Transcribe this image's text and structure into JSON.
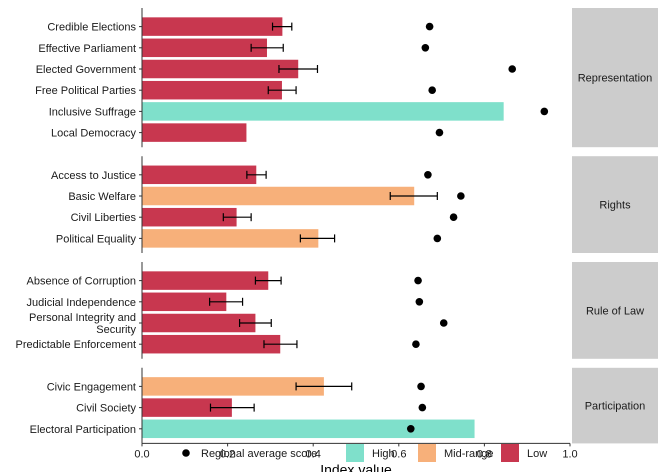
{
  "chart_data": {
    "type": "bar",
    "orientation": "horizontal",
    "xlabel": "Index value",
    "xlim": [
      0,
      1
    ],
    "xticks": [
      "0.0",
      "0.2",
      "0.4",
      "0.6",
      "0.8",
      "1.0"
    ],
    "colors": {
      "High": "#7fe0cb",
      "Mid-range": "#f7b07a",
      "Low": "#c8374f",
      "dot": "#000000",
      "strip": "#cccccc"
    },
    "legend": {
      "position": "bottom",
      "dot_label": "Regional average score",
      "items": [
        "High",
        "Mid-range",
        "Low"
      ]
    },
    "facets": [
      {
        "name": "Representation",
        "rows": [
          {
            "label": "Credible Elections",
            "value": 0.328,
            "lo": 0.305,
            "hi": 0.35,
            "level": "Low",
            "avg": 0.672
          },
          {
            "label": "Effective Parliament",
            "value": 0.292,
            "lo": 0.255,
            "hi": 0.33,
            "level": "Low",
            "avg": 0.662
          },
          {
            "label": "Elected Government",
            "value": 0.365,
            "lo": 0.32,
            "hi": 0.41,
            "level": "Low",
            "avg": 0.865
          },
          {
            "label": "Free Political Parties",
            "value": 0.327,
            "lo": 0.295,
            "hi": 0.36,
            "level": "Low",
            "avg": 0.678
          },
          {
            "label": "Inclusive Suffrage",
            "value": 0.845,
            "lo": null,
            "hi": null,
            "level": "High",
            "avg": 0.94
          },
          {
            "label": "Local Democracy",
            "value": 0.244,
            "lo": null,
            "hi": null,
            "level": "Low",
            "avg": 0.695
          }
        ]
      },
      {
        "name": "Rights",
        "rows": [
          {
            "label": "Access to Justice",
            "value": 0.267,
            "lo": 0.245,
            "hi": 0.29,
            "level": "Low",
            "avg": 0.668
          },
          {
            "label": "Basic Welfare",
            "value": 0.636,
            "lo": 0.58,
            "hi": 0.69,
            "level": "Mid-range",
            "avg": 0.745
          },
          {
            "label": "Civil Liberties",
            "value": 0.221,
            "lo": 0.19,
            "hi": 0.255,
            "level": "Low",
            "avg": 0.728
          },
          {
            "label": "Political Equality",
            "value": 0.412,
            "lo": 0.37,
            "hi": 0.45,
            "level": "Mid-range",
            "avg": 0.69
          }
        ]
      },
      {
        "name": "Rule of Law",
        "rows": [
          {
            "label": "Absence of Corruption",
            "value": 0.295,
            "lo": 0.265,
            "hi": 0.325,
            "level": "Low",
            "avg": 0.645
          },
          {
            "label": "Judicial Independence",
            "value": 0.197,
            "lo": 0.158,
            "hi": 0.235,
            "level": "Low",
            "avg": 0.648
          },
          {
            "label": "Personal Integrity and Security",
            "value": 0.265,
            "lo": 0.228,
            "hi": 0.302,
            "level": "Low",
            "avg": 0.705
          },
          {
            "label": "Predictable Enforcement",
            "value": 0.323,
            "lo": 0.285,
            "hi": 0.362,
            "level": "Low",
            "avg": 0.64
          }
        ]
      },
      {
        "name": "Participation",
        "rows": [
          {
            "label": "Civic Engagement",
            "value": 0.425,
            "lo": 0.36,
            "hi": 0.49,
            "level": "Mid-range",
            "avg": 0.652
          },
          {
            "label": "Civil Society",
            "value": 0.21,
            "lo": 0.16,
            "hi": 0.262,
            "level": "Low",
            "avg": 0.655
          },
          {
            "label": "Electoral Participation",
            "value": 0.777,
            "lo": null,
            "hi": null,
            "level": "High",
            "avg": 0.628
          }
        ]
      }
    ]
  }
}
